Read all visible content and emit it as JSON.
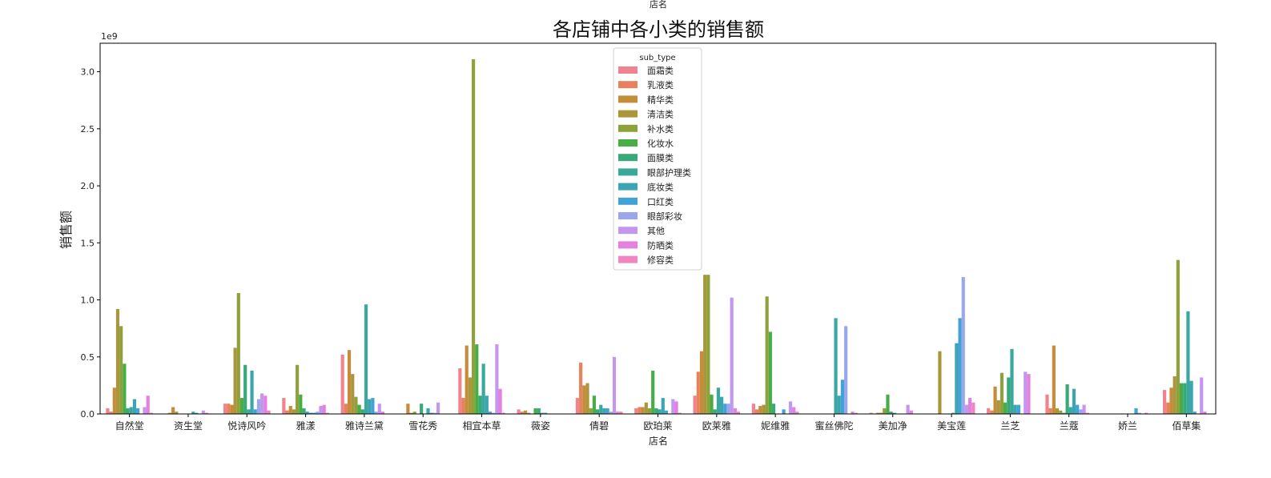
{
  "chart_data": {
    "type": "bar",
    "title": "各店铺中各小类的销售额",
    "top_label": "店名",
    "xlabel": "店名",
    "ylabel": "销售额",
    "y_offset_text": "1e9",
    "y_scale": 1000000000,
    "ylim": [
      0,
      3.25
    ],
    "yticks": [
      "0.0",
      "0.5",
      "1.0",
      "1.5",
      "2.0",
      "2.5",
      "3.0"
    ],
    "legend_title": "sub_type",
    "legend_position": "upper-center",
    "grid": false,
    "categories": [
      "自然堂",
      "资生堂",
      "悦诗风吟",
      "雅漾",
      "雅诗兰黛",
      "雪花秀",
      "相宜本草",
      "薇姿",
      "倩碧",
      "欧珀莱",
      "欧莱雅",
      "妮维雅",
      "蜜丝佛陀",
      "美加净",
      "美宝莲",
      "兰芝",
      "兰蔻",
      "娇兰",
      "佰草集"
    ],
    "series": [
      {
        "name": "面霜类",
        "color": "#f0838d",
        "values": [
          0.05,
          0.0,
          0.09,
          0.14,
          0.52,
          0.0,
          0.4,
          0.04,
          0.14,
          0.05,
          0.16,
          0.09,
          0.0,
          0.01,
          0.0,
          0.05,
          0.17,
          0.0,
          0.21
        ]
      },
      {
        "name": "乳液类",
        "color": "#e5845c",
        "values": [
          0.02,
          0.01,
          0.09,
          0.03,
          0.09,
          0.0,
          0.14,
          0.02,
          0.45,
          0.06,
          0.37,
          0.04,
          0.0,
          0.0,
          0.0,
          0.03,
          0.05,
          0.0,
          0.1
        ]
      },
      {
        "name": "精华类",
        "color": "#c58c3c",
        "values": [
          0.23,
          0.06,
          0.08,
          0.07,
          0.56,
          0.09,
          0.6,
          0.03,
          0.25,
          0.06,
          0.55,
          0.07,
          0.0,
          0.01,
          0.0,
          0.24,
          0.6,
          0.0,
          0.23
        ]
      },
      {
        "name": "清洁类",
        "color": "#ab963c",
        "values": [
          0.92,
          0.02,
          0.58,
          0.04,
          0.35,
          0.01,
          0.32,
          0.01,
          0.27,
          0.1,
          1.22,
          0.08,
          0.0,
          0.01,
          0.55,
          0.12,
          0.05,
          0.0,
          0.33
        ]
      },
      {
        "name": "补水类",
        "color": "#8fa13b",
        "values": [
          0.77,
          0.0,
          1.06,
          0.43,
          0.15,
          0.02,
          3.11,
          0.0,
          0.05,
          0.05,
          1.22,
          1.03,
          0.0,
          0.05,
          0.0,
          0.36,
          0.03,
          0.0,
          1.35
        ]
      },
      {
        "name": "化妆水",
        "color": "#49ad46",
        "values": [
          0.44,
          0.0,
          0.14,
          0.17,
          0.08,
          0.0,
          0.61,
          0.05,
          0.16,
          0.38,
          0.17,
          0.72,
          0.0,
          0.17,
          0.0,
          0.1,
          0.01,
          0.0,
          0.27
        ]
      },
      {
        "name": "面膜类",
        "color": "#39a97a",
        "values": [
          0.05,
          0.0,
          0.43,
          0.05,
          0.04,
          0.09,
          0.16,
          0.05,
          0.04,
          0.05,
          0.04,
          0.09,
          0.0,
          0.02,
          0.0,
          0.32,
          0.26,
          0.0,
          0.27
        ]
      },
      {
        "name": "眼部护理类",
        "color": "#3aa89c",
        "values": [
          0.06,
          0.0,
          0.04,
          0.02,
          0.96,
          0.0,
          0.44,
          0.01,
          0.08,
          0.04,
          0.23,
          0.0,
          0.84,
          0.01,
          0.01,
          0.57,
          0.06,
          0.0,
          0.9
        ]
      },
      {
        "name": "底妆类",
        "color": "#3ca5b2",
        "values": [
          0.13,
          0.02,
          0.38,
          0.01,
          0.13,
          0.05,
          0.16,
          0.01,
          0.05,
          0.14,
          0.15,
          0.0,
          0.16,
          0.0,
          0.62,
          0.08,
          0.22,
          0.0,
          0.29
        ]
      },
      {
        "name": "口红类",
        "color": "#42a2d6",
        "values": [
          0.05,
          0.01,
          0.04,
          0.01,
          0.14,
          0.01,
          0.02,
          0.0,
          0.05,
          0.03,
          0.09,
          0.04,
          0.3,
          0.0,
          0.84,
          0.08,
          0.08,
          0.05,
          0.02
        ]
      },
      {
        "name": "眼部彩妆",
        "color": "#9aa8eb",
        "values": [
          0.0,
          0.0,
          0.13,
          0.02,
          0.02,
          0.01,
          0.01,
          0.0,
          0.02,
          0.0,
          0.09,
          0.0,
          0.77,
          0.0,
          1.2,
          0.0,
          0.04,
          0.01,
          0.0
        ]
      },
      {
        "name": "其他",
        "color": "#c497ee",
        "values": [
          0.06,
          0.03,
          0.18,
          0.07,
          0.09,
          0.1,
          0.61,
          0.0,
          0.5,
          0.13,
          1.02,
          0.11,
          0.0,
          0.08,
          0.08,
          0.37,
          0.08,
          0.0,
          0.32
        ]
      },
      {
        "name": "防晒类",
        "color": "#e57fe0",
        "values": [
          0.16,
          0.01,
          0.16,
          0.08,
          0.02,
          0.0,
          0.22,
          0.0,
          0.02,
          0.11,
          0.05,
          0.06,
          0.02,
          0.03,
          0.14,
          0.35,
          0.01,
          0.01,
          0.02
        ]
      },
      {
        "name": "修容类",
        "color": "#ef86c0",
        "values": [
          0.01,
          0.0,
          0.03,
          0.01,
          0.0,
          0.0,
          0.01,
          0.0,
          0.02,
          0.01,
          0.02,
          0.02,
          0.01,
          0.0,
          0.1,
          0.0,
          0.0,
          0.0,
          0.0
        ]
      }
    ]
  }
}
